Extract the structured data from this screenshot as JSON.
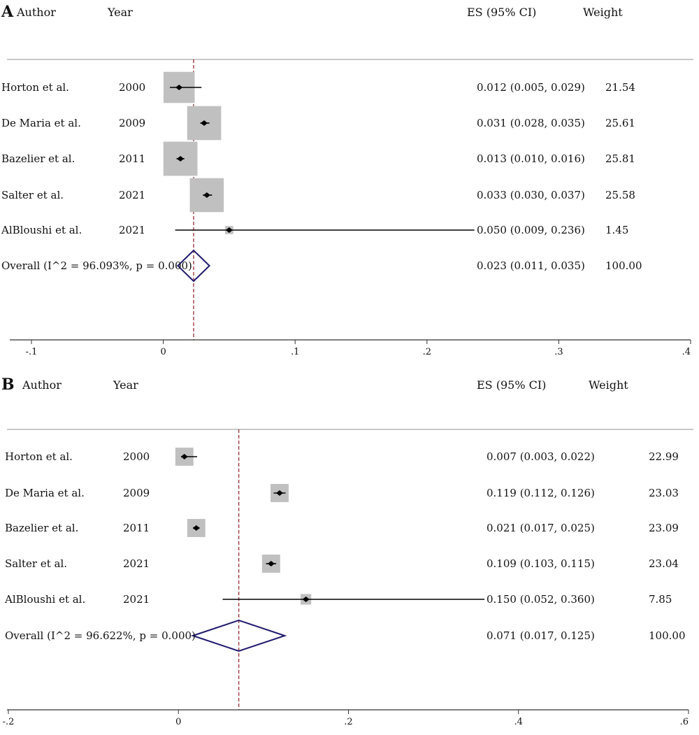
{
  "chart_data": [
    {
      "type": "forest",
      "panel": "A",
      "headers": {
        "author": "Author",
        "year": "Year",
        "es": "ES (95% CI)",
        "weight": "Weight"
      },
      "studies": [
        {
          "author": "Horton et al.",
          "year": "2000",
          "es": 0.012,
          "lo": 0.005,
          "hi": 0.029,
          "es_text": "0.012 (0.005, 0.029)",
          "weight": 21.54,
          "weight_text": "21.54"
        },
        {
          "author": "De Maria et al.",
          "year": "2009",
          "es": 0.031,
          "lo": 0.028,
          "hi": 0.035,
          "es_text": "0.031 (0.028, 0.035)",
          "weight": 25.61,
          "weight_text": "25.61"
        },
        {
          "author": "Bazelier et al.",
          "year": "2011",
          "es": 0.013,
          "lo": 0.01,
          "hi": 0.016,
          "es_text": "0.013 (0.010, 0.016)",
          "weight": 25.81,
          "weight_text": "25.81"
        },
        {
          "author": "Salter et al.",
          "year": "2021",
          "es": 0.033,
          "lo": 0.03,
          "hi": 0.037,
          "es_text": "0.033 (0.030, 0.037)",
          "weight": 25.58,
          "weight_text": "25.58"
        },
        {
          "author": "AlBloushi et al.",
          "year": "2021",
          "es": 0.05,
          "lo": 0.009,
          "hi": 0.236,
          "es_text": "0.050 (0.009, 0.236)",
          "weight": 1.45,
          "weight_text": "1.45"
        }
      ],
      "overall": {
        "label": "Overall (I^2 = 96.093%, p = 0.000)",
        "es": 0.023,
        "lo": 0.011,
        "hi": 0.035,
        "es_text": "0.023 (0.011, 0.035)",
        "weight_text": "100.00"
      },
      "x_ticks": [
        -0.1,
        0,
        0.1,
        0.2,
        0.3,
        0.4
      ],
      "x_tick_labels": [
        "-.1",
        "0",
        ".1",
        ".2",
        ".3",
        ".4"
      ],
      "xlim": [
        -0.1,
        0.4
      ],
      "display_clip_max": 0.236
    },
    {
      "type": "forest",
      "panel": "B",
      "headers": {
        "author": "Author",
        "year": "Year",
        "es": "ES (95% CI)",
        "weight": "Weight"
      },
      "studies": [
        {
          "author": "Horton et al.",
          "year": "2000",
          "es": 0.007,
          "lo": 0.003,
          "hi": 0.022,
          "es_text": "0.007 (0.003, 0.022)",
          "weight": 22.99,
          "weight_text": "22.99"
        },
        {
          "author": "De Maria et al.",
          "year": "2009",
          "es": 0.119,
          "lo": 0.112,
          "hi": 0.126,
          "es_text": "0.119 (0.112, 0.126)",
          "weight": 23.03,
          "weight_text": "23.03"
        },
        {
          "author": "Bazelier et al.",
          "year": "2011",
          "es": 0.021,
          "lo": 0.017,
          "hi": 0.025,
          "es_text": "0.021 (0.017, 0.025)",
          "weight": 23.09,
          "weight_text": "23.09"
        },
        {
          "author": "Salter et al.",
          "year": "2021",
          "es": 0.109,
          "lo": 0.103,
          "hi": 0.115,
          "es_text": "0.109 (0.103, 0.115)",
          "weight": 23.04,
          "weight_text": "23.04"
        },
        {
          "author": "AlBloushi et al.",
          "year": "2021",
          "es": 0.15,
          "lo": 0.052,
          "hi": 0.36,
          "es_text": "0.150 (0.052, 0.360)",
          "weight": 7.85,
          "weight_text": "7.85"
        }
      ],
      "overall": {
        "label": "Overall (I^2 = 96.622%, p = 0.000)",
        "es": 0.071,
        "lo": 0.017,
        "hi": 0.125,
        "es_text": "0.071 (0.017, 0.125)",
        "weight_text": "100.00"
      },
      "x_ticks": [
        -0.2,
        0,
        0.2,
        0.4,
        0.6
      ],
      "x_tick_labels": [
        "-.2",
        "0",
        ".2",
        ".4",
        ".6"
      ],
      "xlim": [
        -0.2,
        0.6
      ],
      "display_clip_max": 0.36
    }
  ],
  "colors": {
    "box": "#c0c0c0",
    "diamond": "#1f1a6e",
    "ref_line": "#a0393d",
    "separator": "#b5b5b5",
    "axis": "#333333",
    "text": "#111111"
  }
}
